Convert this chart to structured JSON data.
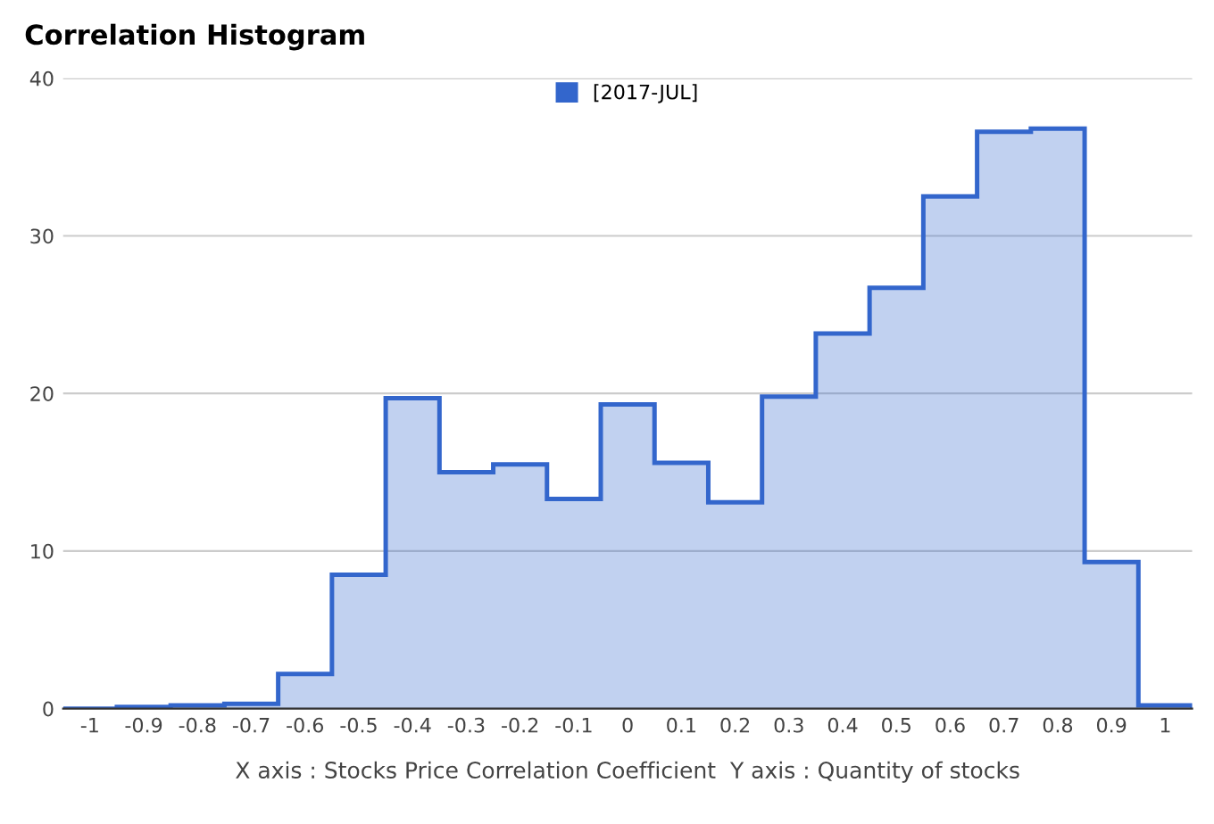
{
  "chart_data": {
    "type": "histogram",
    "title": "Correlation Histogram",
    "xlabel": "X axis : Stocks Price Correlation Coefficient  Y axis : Quantity of stocks",
    "bins": [
      -1.05,
      -0.95,
      -0.85,
      -0.75,
      -0.65,
      -0.55,
      -0.45,
      -0.35,
      -0.25,
      -0.15,
      -0.05,
      0.05,
      0.15,
      0.25,
      0.35,
      0.45,
      0.55,
      0.65,
      0.75,
      0.85,
      0.95,
      1.05
    ],
    "series": [
      {
        "name": "[2017-JUL]",
        "color": "#3366cc",
        "values": [
          0.0,
          0.1,
          0.2,
          0.3,
          2.2,
          8.5,
          19.7,
          15.0,
          15.5,
          13.3,
          19.3,
          15.6,
          13.1,
          19.8,
          23.8,
          26.7,
          32.5,
          36.6,
          36.8,
          9.3,
          0.2
        ]
      }
    ],
    "xlim": [
      -1.05,
      1.05
    ],
    "xticks": [
      -1,
      -0.9,
      -0.8,
      -0.7,
      -0.6,
      -0.5,
      -0.4,
      -0.3,
      -0.2,
      -0.1,
      0,
      0.1,
      0.2,
      0.3,
      0.4,
      0.5,
      0.6,
      0.7,
      0.8,
      0.9,
      1
    ],
    "ylim": [
      0,
      40
    ],
    "yticks": [
      0,
      10,
      20,
      30,
      40
    ],
    "grid": "y",
    "legend": "top"
  }
}
